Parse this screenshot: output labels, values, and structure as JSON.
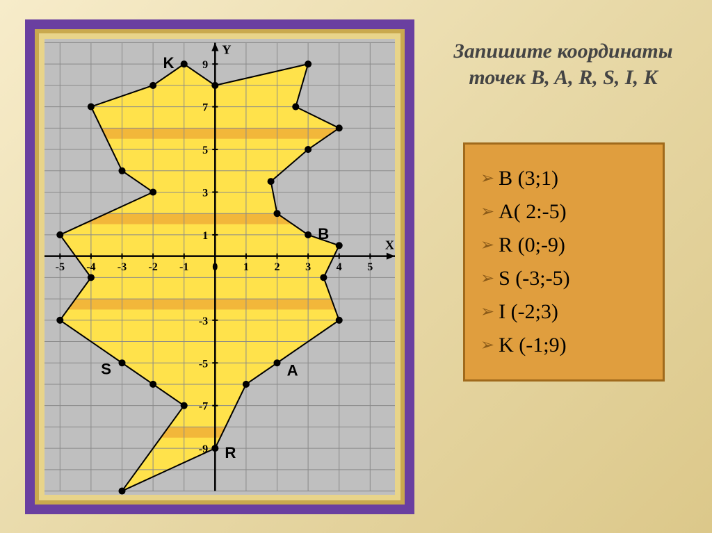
{
  "title": "Запишите координаты точек B, A, R, S, I, K",
  "answers": [
    "В (3;1)",
    "А( 2:-5)",
    "R (0;-9)",
    "S (-3;-5)",
    "I (-2;3)",
    "K (-1;9)"
  ],
  "chart": {
    "type": "line-polygon-on-grid",
    "background_color": "#bfbfbf",
    "grid_color": "#8a8a8a",
    "axis_color": "#000000",
    "shape_fill": "#ffe24b",
    "stripe_fill": "#f2b73a",
    "dot_color": "#000000",
    "label_color": "#000000",
    "xlim": [
      -5.5,
      5.8
    ],
    "ylim": [
      -11,
      10
    ],
    "x_ticks": [
      -5,
      -4,
      -3,
      -2,
      -1,
      0,
      1,
      2,
      3,
      4,
      5
    ],
    "y_ticks": [
      -9,
      -7,
      -5,
      -3,
      1,
      3,
      5,
      7,
      9
    ],
    "axis_labels": {
      "x": "X",
      "y": "Y"
    },
    "grid_spacing": 1,
    "polygon_vertices": [
      [
        -1,
        9
      ],
      [
        0,
        8
      ],
      [
        3,
        9
      ],
      [
        2.6,
        7
      ],
      [
        4,
        6
      ],
      [
        3,
        5
      ],
      [
        1.8,
        3.5
      ],
      [
        2,
        2
      ],
      [
        3,
        1
      ],
      [
        4,
        0.5
      ],
      [
        3.5,
        -1
      ],
      [
        4,
        -3
      ],
      [
        2,
        -5
      ],
      [
        1,
        -6
      ],
      [
        0,
        -9
      ],
      [
        -3,
        -11
      ],
      [
        -1,
        -7
      ],
      [
        -2,
        -6
      ],
      [
        -3,
        -5
      ],
      [
        -5,
        -3
      ],
      [
        -4,
        -1
      ],
      [
        -5,
        1
      ],
      [
        -2,
        3
      ],
      [
        -3,
        4
      ],
      [
        -4,
        7
      ],
      [
        -2,
        8
      ]
    ],
    "stripes_y": [
      [
        5.5,
        6
      ],
      [
        1.5,
        2
      ],
      [
        -2,
        -2.5
      ],
      [
        -8,
        -8.5
      ]
    ],
    "labeled_points": {
      "K": [
        -1,
        9
      ],
      "B": [
        3,
        1
      ],
      "A": [
        2,
        -5
      ],
      "R": [
        0,
        -9
      ],
      "S": [
        -3,
        -5
      ]
    },
    "dot_radius": 5
  }
}
